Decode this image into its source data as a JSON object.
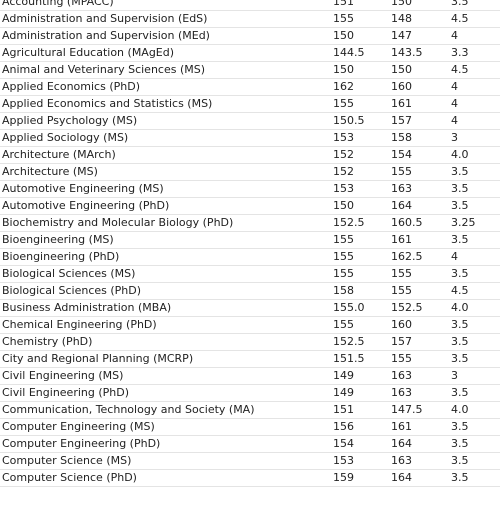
{
  "rows": [
    {
      "program": "Accounting (MPACC)",
      "verbal": "151",
      "quant": "150",
      "awa": "3.5"
    },
    {
      "program": "Administration and Supervision (EdS)",
      "verbal": "155",
      "quant": "148",
      "awa": "4.5"
    },
    {
      "program": "Administration and Supervision (MEd)",
      "verbal": "150",
      "quant": "147",
      "awa": "4"
    },
    {
      "program": "Agricultural Education (MAgEd)",
      "verbal": "144.5",
      "quant": "143.5",
      "awa": "3.3"
    },
    {
      "program": "Animal and Veterinary Sciences (MS)",
      "verbal": "150",
      "quant": "150",
      "awa": "4.5"
    },
    {
      "program": "Applied Economics (PhD)",
      "verbal": "162",
      "quant": "160",
      "awa": "4"
    },
    {
      "program": "Applied Economics and Statistics (MS)",
      "verbal": "155",
      "quant": "161",
      "awa": "4"
    },
    {
      "program": "Applied Psychology (MS)",
      "verbal": "150.5",
      "quant": "157",
      "awa": "4"
    },
    {
      "program": "Applied Sociology (MS)",
      "verbal": "153",
      "quant": "158",
      "awa": "3"
    },
    {
      "program": "Architecture (MArch)",
      "verbal": "152",
      "quant": "154",
      "awa": "4.0"
    },
    {
      "program": "Architecture (MS)",
      "verbal": "152",
      "quant": "155",
      "awa": "3.5"
    },
    {
      "program": "Automotive Engineering (MS)",
      "verbal": "153",
      "quant": "163",
      "awa": "3.5"
    },
    {
      "program": "Automotive Engineering (PhD)",
      "verbal": "150",
      "quant": "164",
      "awa": "3.5"
    },
    {
      "program": "Biochemistry and Molecular Biology (PhD)",
      "verbal": "152.5",
      "quant": "160.5",
      "awa": "3.25"
    },
    {
      "program": "Bioengineering (MS)",
      "verbal": "155",
      "quant": "161",
      "awa": "3.5"
    },
    {
      "program": "Bioengineering (PhD)",
      "verbal": "155",
      "quant": "162.5",
      "awa": "4"
    },
    {
      "program": "Biological Sciences (MS)",
      "verbal": "155",
      "quant": "155",
      "awa": "3.5"
    },
    {
      "program": "Biological Sciences (PhD)",
      "verbal": "158",
      "quant": "155",
      "awa": "4.5"
    },
    {
      "program": "Business Administration (MBA)",
      "verbal": "155.0",
      "quant": "152.5",
      "awa": "4.0"
    },
    {
      "program": "Chemical Engineering (PhD)",
      "verbal": "155",
      "quant": "160",
      "awa": "3.5"
    },
    {
      "program": "Chemistry (PhD)",
      "verbal": "152.5",
      "quant": "157",
      "awa": "3.5"
    },
    {
      "program": "City and Regional Planning (MCRP)",
      "verbal": "151.5",
      "quant": "155",
      "awa": "3.5"
    },
    {
      "program": "Civil Engineering (MS)",
      "verbal": "149",
      "quant": "163",
      "awa": "3"
    },
    {
      "program": "Civil Engineering (PhD)",
      "verbal": "149",
      "quant": "163",
      "awa": "3.5"
    },
    {
      "program": "Communication, Technology and Society (MA)",
      "verbal": "151",
      "quant": "147.5",
      "awa": "4.0"
    },
    {
      "program": "Computer Engineering (MS)",
      "verbal": "156",
      "quant": "161",
      "awa": "3.5"
    },
    {
      "program": "Computer Engineering (PhD)",
      "verbal": "154",
      "quant": "164",
      "awa": "3.5"
    },
    {
      "program": "Computer Science (MS)",
      "verbal": "153",
      "quant": "163",
      "awa": "3.5"
    },
    {
      "program": "Computer Science (PhD)",
      "verbal": "159",
      "quant": "164",
      "awa": "3.5"
    }
  ]
}
